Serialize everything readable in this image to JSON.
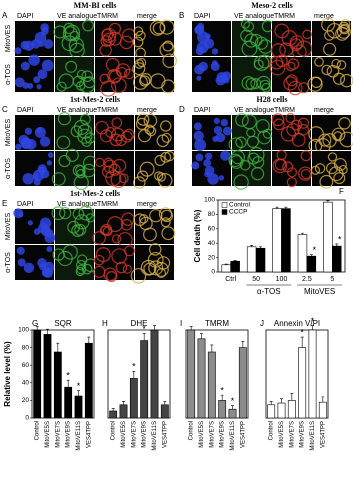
{
  "panels": [
    {
      "letter": "A",
      "title": "MM-BI cells",
      "columns": [
        "DAPI",
        "VE analogue",
        "TMRM",
        "merge"
      ],
      "rows": [
        "MitoVES",
        "α-TOS"
      ]
    },
    {
      "letter": "B",
      "title": "Meso-2 cells",
      "columns": [
        "DAPI",
        "VE analogue",
        "TMRM",
        "merge"
      ],
      "rows": []
    },
    {
      "letter": "C",
      "title": "1st-Mes-2 cells",
      "columns": [
        "DAPI",
        "VE analogue",
        "TMRM",
        "merge"
      ],
      "rows": [
        "MitoVES",
        "α-TOS"
      ]
    },
    {
      "letter": "D",
      "title": "H28 cells",
      "columns": [
        "DAPI",
        "VE analogue",
        "TMRM",
        "merge"
      ],
      "rows": []
    },
    {
      "letter": "E",
      "title": "1st-Mes-2 cells",
      "columns": [
        "DAPI",
        "VE analogue",
        "TMRM",
        "merge"
      ],
      "rows": [
        "MitoVES",
        "α-TOS"
      ]
    }
  ],
  "chart_data": [
    {
      "type": "bar",
      "letter": "F",
      "ylabel": "Cell death (%)",
      "categories": [
        "Ctrl",
        "50",
        "100",
        "2.5",
        "5"
      ],
      "category_groups": [
        null,
        "α-TOS",
        "α-TOS",
        "MitoVES",
        "MitoVES"
      ],
      "series": [
        {
          "name": "Control",
          "color": "#ffffff",
          "values": [
            10,
            35,
            88,
            52,
            97
          ],
          "errors": [
            1,
            2,
            2,
            2,
            2
          ]
        },
        {
          "name": "CCCP",
          "color": "#000000",
          "values": [
            15,
            33,
            88,
            22,
            36
          ],
          "errors": [
            1,
            2,
            2,
            2,
            3
          ],
          "annotations": [
            null,
            null,
            null,
            "*",
            "*"
          ]
        }
      ],
      "ylim": [
        0,
        100
      ],
      "yticks": [
        0,
        20,
        40,
        60,
        80,
        100
      ],
      "legend": "top-left"
    },
    {
      "type": "bar",
      "letter": "G",
      "label": "SQR",
      "ylabel": "Relative level (%)",
      "categories": [
        "Control",
        "MitoVE5S",
        "MitoVE7S",
        "MitoVE9S",
        "MitoVE11S",
        "VES4TPP"
      ],
      "values": [
        100,
        95,
        75,
        35,
        25,
        85
      ],
      "errors": [
        4,
        6,
        10,
        8,
        6,
        7
      ],
      "annotations": [
        null,
        null,
        null,
        "*",
        "*",
        null
      ],
      "color": "#000000",
      "ylim": [
        0,
        100
      ],
      "yticks": [
        0,
        20,
        40,
        60,
        80,
        100
      ]
    },
    {
      "type": "bar",
      "letter": "H",
      "label": "DHE",
      "categories": [
        "Control",
        "MitoVE5S",
        "MitoVE7S",
        "MitoVE9S",
        "MitoVE11S",
        "VES4TPP"
      ],
      "values": [
        8,
        15,
        45,
        88,
        100,
        15
      ],
      "errors": [
        3,
        4,
        8,
        8,
        5,
        4
      ],
      "annotations": [
        null,
        null,
        "*",
        "*",
        null,
        null
      ],
      "color": "#444444",
      "ylim": [
        0,
        100
      ]
    },
    {
      "type": "bar",
      "letter": "I",
      "label": "TMRM",
      "categories": [
        "Control",
        "MitoVE5S",
        "MitoVE7S",
        "MitoVE9S",
        "MitoVE11S",
        "VES4TPP"
      ],
      "values": [
        100,
        90,
        75,
        20,
        10,
        80
      ],
      "errors": [
        4,
        6,
        8,
        6,
        4,
        7
      ],
      "annotations": [
        null,
        null,
        null,
        "*",
        "*",
        null
      ],
      "color": "#8c8c8c",
      "ylim": [
        0,
        100
      ]
    },
    {
      "type": "bar",
      "letter": "J",
      "label": "Annexin V/PI",
      "categories": [
        "Control",
        "MitoVE5S",
        "MitoVE7S",
        "MitoVE9S",
        "MitoVE11S",
        "VES4TPP"
      ],
      "values": [
        15,
        17,
        20,
        80,
        100,
        18
      ],
      "errors": [
        4,
        5,
        8,
        12,
        5,
        6
      ],
      "annotations": [
        null,
        null,
        null,
        "*",
        "*",
        null
      ],
      "color": "#ffffff",
      "ylim": [
        0,
        100
      ]
    }
  ]
}
